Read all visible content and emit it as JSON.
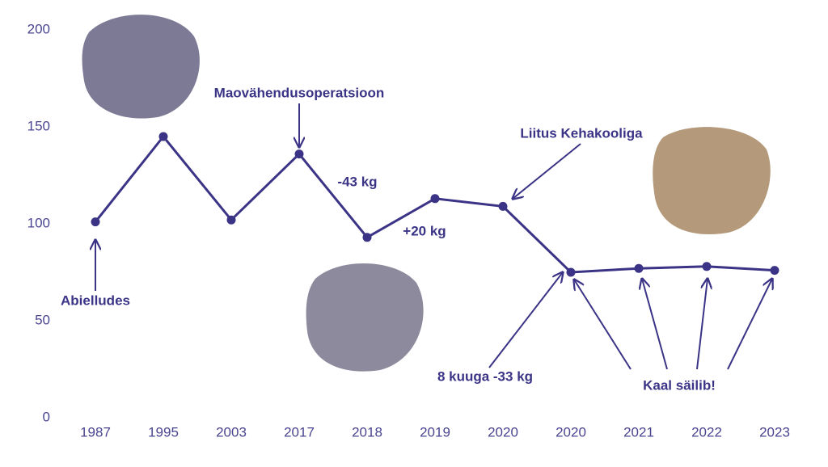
{
  "chart_data": {
    "type": "line",
    "categories": [
      "1987",
      "1995",
      "2003",
      "2017",
      "2018",
      "2019",
      "2020",
      "2020",
      "2021",
      "2022",
      "2023"
    ],
    "values": [
      101,
      145,
      102,
      136,
      93,
      113,
      109,
      75,
      77,
      78,
      76
    ],
    "color": "#3b3486",
    "ylim": [
      0,
      200
    ],
    "yticks": [
      0,
      50,
      100,
      150,
      200
    ],
    "grid": false,
    "annotations": [
      "Maovähendusoperatsioon",
      "-43 kg",
      "+20 kg",
      "Liitus Kehakooliga",
      "Abielludes",
      "8 kuuga -33 kg",
      "Kaal säilib!"
    ]
  }
}
